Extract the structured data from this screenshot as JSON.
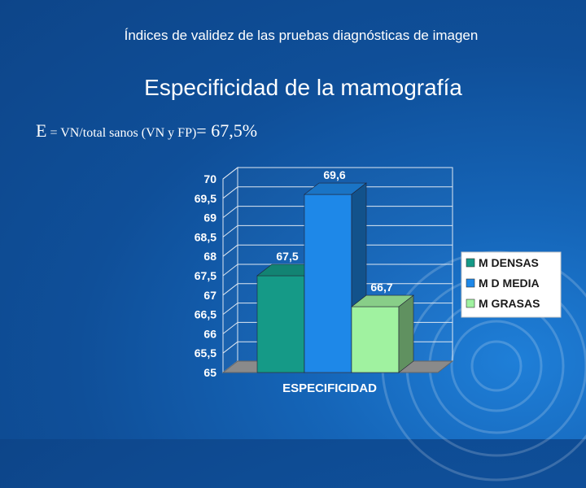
{
  "header": {
    "text": "Índices de validez de las pruebas diagnósticas de imagen"
  },
  "slide": {
    "title": "Especificidad de la mamografía",
    "formula": {
      "letter": "E",
      "definition": " = VN/total sanos (VN y FP)",
      "result": "= 67,5%"
    }
  },
  "colors": {
    "background": "#0f4f99",
    "m_densas": "#159a87",
    "m_d_media": "#1e88e8",
    "m_grasas": "#a0f2a0"
  },
  "chart_data": {
    "type": "bar",
    "categories": [
      "ESPECIFICIDAD"
    ],
    "xlabel": "ESPECIFICIDAD",
    "ylim": [
      65,
      70
    ],
    "yticks": [
      "70",
      "69,5",
      "69",
      "68,5",
      "68",
      "67,5",
      "67",
      "66,5",
      "66",
      "65,5",
      "65"
    ],
    "grid": true,
    "legend_position": "right",
    "series": [
      {
        "name": "M DENSAS",
        "value": 67.5,
        "label": "67,5",
        "color": "#159a87"
      },
      {
        "name": "M D MEDIA",
        "value": 69.6,
        "label": "69,6",
        "color": "#1e88e8"
      },
      {
        "name": "M GRASAS",
        "value": 66.7,
        "label": "66,7",
        "color": "#a0f2a0"
      }
    ]
  }
}
